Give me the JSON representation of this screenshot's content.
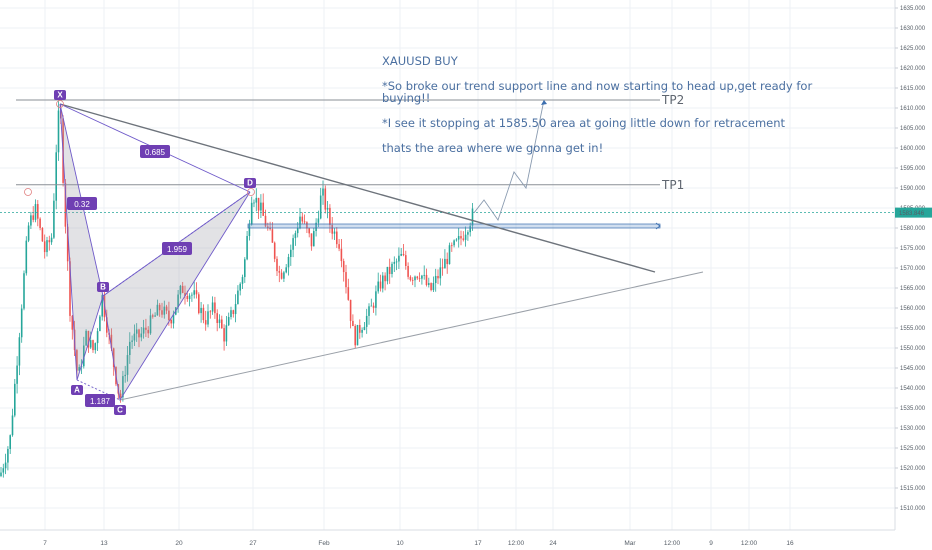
{
  "chart_data": {
    "type": "candlestick",
    "symbol": "XAUUSD",
    "annotation_lines": [
      "XAUUSD BUY",
      "*So broke our trend support line and now starting to head up,get ready for buying!!",
      "*I see it stopping at 1585.50 area at going little down for retracement",
      "thats the area where we gonna get in!"
    ],
    "price_axis": {
      "min": 1505,
      "max": 1636,
      "ticks": [
        "1635.000",
        "1630.000",
        "1625.000",
        "1620.000",
        "1615.000",
        "1610.000",
        "1605.000",
        "1600.000",
        "1595.000",
        "1590.000",
        "1585.000",
        "1580.000",
        "1575.000",
        "1570.000",
        "1565.000",
        "1560.000",
        "1555.000",
        "1550.000",
        "1545.000",
        "1540.000",
        "1535.000",
        "1530.000",
        "1525.000",
        "1520.000",
        "1515.000",
        "1510.000"
      ],
      "current_price_label": "1583.846",
      "current_price": 1583.846
    },
    "time_axis": {
      "ticks": [
        "7",
        "13",
        "20",
        "27",
        "Feb",
        "10",
        "17",
        "12:00",
        "24",
        "Mar",
        "12:00",
        "9",
        "12:00",
        "16"
      ]
    },
    "levels": [
      {
        "label": "TP2",
        "price": 1612.0
      },
      {
        "label": "TP1",
        "price": 1590.8
      }
    ],
    "harmonic_pattern": {
      "points": [
        {
          "label": "X",
          "price": 1611.0
        },
        {
          "label": "A",
          "price": 1542.0
        },
        {
          "label": "B",
          "price": 1563.0
        },
        {
          "label": "C",
          "price": 1537.0
        },
        {
          "label": "D",
          "price": 1589.0
        }
      ],
      "ratios": [
        "0.685",
        "0.32",
        "1.959",
        "1.187"
      ]
    },
    "trendlines": [
      {
        "name": "descending resistance",
        "from_price": 1611.0,
        "to_price": 1569.0
      },
      {
        "name": "ascending support",
        "from_price": 1537.0,
        "to_price": 1569.0
      }
    ],
    "entry_zone": {
      "from_price": 1581.0,
      "to_price": 1580.2
    },
    "projected_path_prices": [
      1583.8,
      1587.0,
      1582.0,
      1594.0,
      1590.0,
      1612.0
    ],
    "candles_seed": 7
  },
  "colors": {
    "up": "#26a69a",
    "down": "#ef5350",
    "pattern_fill": "rgba(150,150,160,0.28)",
    "pattern_stroke": "#6f5ac9",
    "label_bg": "#6f3fb3",
    "price_line": "#26a69a",
    "entry_fill": "rgba(120,160,210,0.35)",
    "entry_stroke": "#3b6fb0",
    "grid": "#eef1f5"
  }
}
